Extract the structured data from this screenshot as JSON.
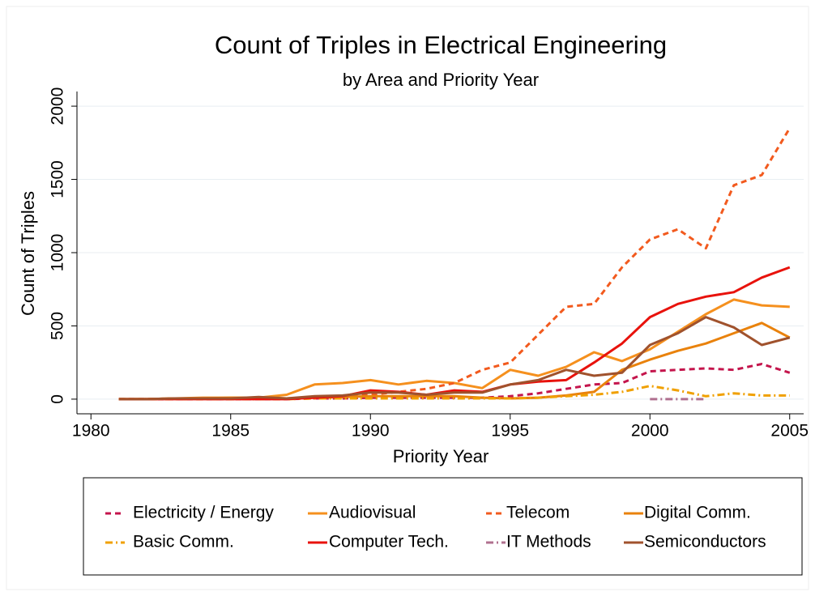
{
  "chart_data": {
    "type": "line",
    "title": "Count of Triples in Electrical Engineering",
    "subtitle": "by Area and Priority Year",
    "x_label": "Priority Year",
    "y_label": "Count of Triples",
    "x": [
      1981,
      1982,
      1983,
      1984,
      1985,
      1986,
      1987,
      1988,
      1989,
      1990,
      1991,
      1992,
      1993,
      1994,
      1995,
      1996,
      1997,
      1998,
      1999,
      2000,
      2001,
      2002,
      2003,
      2004,
      2005
    ],
    "series": [
      {
        "name": "Electricity / Energy",
        "color": "#c4154c",
        "style": "dashed",
        "values": [
          0,
          0,
          0,
          0,
          0,
          0,
          0,
          5,
          5,
          10,
          10,
          10,
          10,
          10,
          20,
          40,
          70,
          100,
          110,
          190,
          200,
          210,
          200,
          240,
          180
        ]
      },
      {
        "name": "Audiovisual",
        "color": "#f5901e",
        "style": "solid",
        "values": [
          0,
          0,
          5,
          10,
          10,
          10,
          30,
          100,
          110,
          130,
          100,
          125,
          110,
          75,
          200,
          160,
          220,
          320,
          260,
          340,
          460,
          580,
          680,
          640,
          630
        ]
      },
      {
        "name": "Telecom",
        "color": "#f25a1e",
        "style": "dashed",
        "values": [
          0,
          0,
          5,
          5,
          5,
          5,
          5,
          10,
          15,
          30,
          50,
          70,
          110,
          200,
          250,
          440,
          630,
          650,
          900,
          1090,
          1160,
          1030,
          1460,
          1530,
          1850
        ]
      },
      {
        "name": "Digital Comm.",
        "color": "#e9820c",
        "style": "solid",
        "values": [
          0,
          0,
          5,
          5,
          10,
          10,
          5,
          10,
          15,
          20,
          20,
          20,
          20,
          10,
          5,
          10,
          25,
          50,
          200,
          270,
          330,
          380,
          450,
          520,
          420
        ]
      },
      {
        "name": "Basic Comm.",
        "color": "#f0a000",
        "style": "dashdot",
        "values": [
          0,
          0,
          0,
          0,
          0,
          0,
          0,
          5,
          5,
          5,
          5,
          5,
          5,
          5,
          5,
          10,
          20,
          30,
          50,
          90,
          60,
          20,
          40,
          25,
          25
        ]
      },
      {
        "name": "Computer Tech.",
        "color": "#e8120c",
        "style": "solid",
        "values": [
          0,
          0,
          0,
          0,
          0,
          0,
          0,
          10,
          20,
          60,
          50,
          30,
          60,
          50,
          100,
          120,
          130,
          250,
          380,
          560,
          650,
          700,
          730,
          830,
          900
        ]
      },
      {
        "name": "IT Methods",
        "color": "#b0708f",
        "style": "dashdot",
        "values": [
          null,
          null,
          null,
          null,
          null,
          null,
          null,
          null,
          null,
          null,
          null,
          null,
          null,
          null,
          null,
          null,
          null,
          null,
          null,
          0,
          0,
          0,
          null,
          null,
          null
        ]
      },
      {
        "name": "Semiconductors",
        "color": "#a0522d",
        "style": "solid",
        "values": [
          0,
          0,
          5,
          5,
          5,
          15,
          5,
          20,
          25,
          45,
          45,
          30,
          45,
          45,
          100,
          130,
          200,
          160,
          180,
          370,
          450,
          560,
          490,
          370,
          420
        ]
      }
    ],
    "xlim": [
      1979.5,
      2005.5
    ],
    "ylim": [
      -100,
      2100
    ],
    "xticks": [
      1980,
      1985,
      1990,
      1995,
      2000,
      2005
    ],
    "yticks": [
      0,
      500,
      1000,
      1500,
      2000
    ],
    "grid": true,
    "legend": "bottom"
  }
}
